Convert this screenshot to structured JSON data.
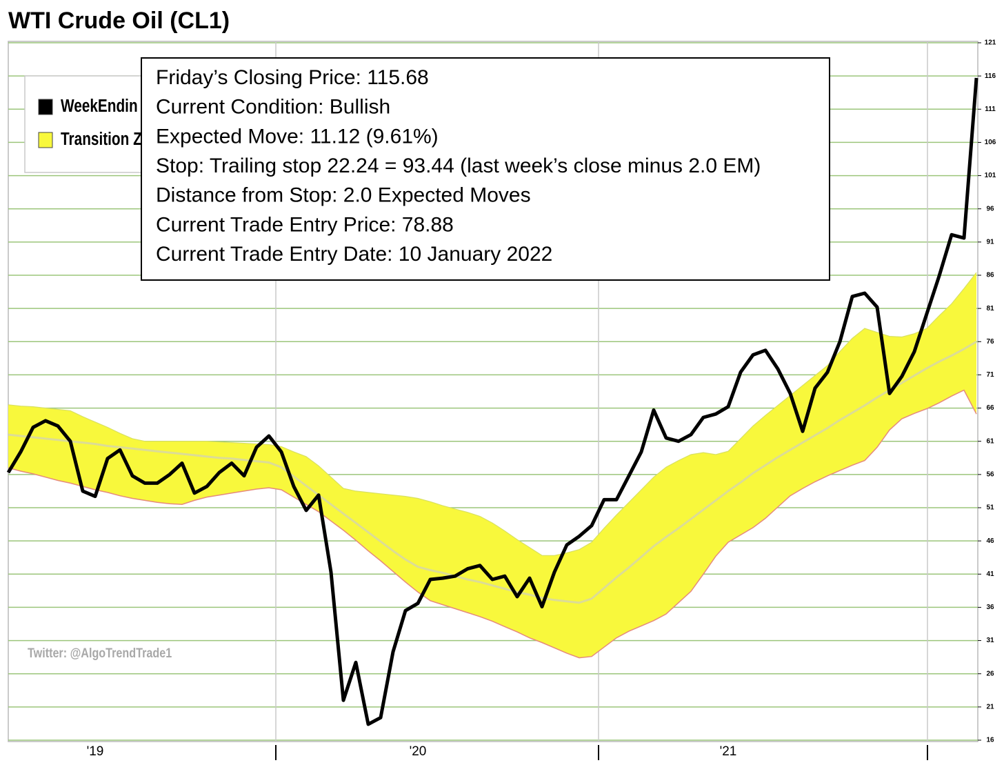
{
  "chart_data": {
    "type": "line",
    "title": "WTI Crude Oil (CL1)",
    "categories": [
      null,
      null,
      null,
      null,
      null,
      null,
      null,
      "'19",
      null,
      null,
      null,
      null,
      null,
      null,
      null,
      null,
      null,
      null,
      null,
      null,
      null,
      null,
      null,
      null,
      null,
      null,
      null,
      null,
      null,
      null,
      null,
      null,
      null,
      "'20",
      null,
      null,
      null,
      null,
      null,
      null,
      null,
      null,
      null,
      null,
      null,
      null,
      null,
      null,
      null,
      null,
      null,
      null,
      null,
      null,
      null,
      null,
      null,
      null,
      "'21",
      null,
      null,
      null,
      null,
      null,
      null,
      null,
      null,
      null,
      null,
      null,
      null,
      null,
      null,
      null,
      null,
      null,
      null,
      null,
      null
    ],
    "series": [
      {
        "name": "WeekEndin",
        "color": "#000000",
        "values": [
          56.3,
          59.4,
          63.1,
          64.1,
          63.3,
          61.0,
          53.5,
          52.7,
          58.4,
          59.7,
          55.8,
          54.7,
          54.7,
          56.0,
          57.7,
          53.2,
          54.2,
          56.3,
          57.7,
          55.8,
          60.1,
          61.8,
          59.4,
          54.2,
          50.6,
          52.9,
          41.3,
          22.0,
          27.7,
          18.4,
          19.4,
          29.3,
          35.5,
          36.6,
          40.2,
          40.4,
          40.7,
          41.8,
          42.3,
          40.2,
          40.7,
          37.6,
          40.4,
          36.1,
          41.3,
          45.4,
          46.7,
          48.3,
          52.2,
          52.2,
          55.8,
          59.4,
          65.7,
          61.5,
          61.0,
          62.0,
          64.6,
          65.1,
          66.2,
          71.4,
          74.0,
          74.7,
          71.9,
          68.2,
          62.5,
          69.0,
          71.4,
          76.0,
          82.8,
          83.3,
          81.2,
          68.2,
          70.8,
          74.5,
          80.2,
          85.9,
          92.1,
          91.6,
          115.7
        ]
      },
      {
        "name": "Transition Z",
        "color": "#f8f83c",
        "edge_color": "#e58a7c",
        "values": [
          66.5,
          66.3,
          66.2,
          66.0,
          65.8,
          65.6,
          64.7,
          63.9,
          63.1,
          62.2,
          61.4,
          61.0,
          61.0,
          61.0,
          61.0,
          61.0,
          61.0,
          60.9,
          60.8,
          60.7,
          60.6,
          60.5,
          60.2,
          59.4,
          58.7,
          57.3,
          55.6,
          53.9,
          53.5,
          53.3,
          53.1,
          52.9,
          52.7,
          52.4,
          51.9,
          51.3,
          50.8,
          50.3,
          49.7,
          48.7,
          47.5,
          46.2,
          45.0,
          43.8,
          43.8,
          44.2,
          44.7,
          45.8,
          47.9,
          49.9,
          51.8,
          53.7,
          55.6,
          57.1,
          58.1,
          59.0,
          59.3,
          59.0,
          59.5,
          61.4,
          63.3,
          64.9,
          66.4,
          67.9,
          69.4,
          70.9,
          72.4,
          74.5,
          76.5,
          78.0,
          77.4,
          76.8,
          76.7,
          77.2,
          78.0,
          79.9,
          81.7,
          84.0,
          86.4
        ],
        "lower": [
          57.0,
          56.5,
          56.1,
          55.6,
          55.1,
          54.7,
          54.2,
          53.7,
          53.3,
          52.8,
          52.4,
          52.1,
          51.8,
          51.6,
          51.5,
          52.1,
          52.6,
          52.9,
          53.2,
          53.5,
          53.8,
          54.0,
          53.7,
          52.6,
          51.5,
          50.4,
          49.0,
          47.6,
          46.1,
          44.5,
          43.0,
          41.4,
          39.8,
          38.3,
          37.0,
          36.4,
          35.8,
          35.2,
          34.6,
          33.9,
          33.1,
          32.3,
          31.4,
          30.7,
          29.9,
          29.1,
          28.4,
          28.6,
          30.0,
          31.4,
          32.4,
          33.2,
          34.0,
          35.0,
          36.7,
          38.4,
          41.0,
          43.7,
          45.8,
          46.9,
          48.0,
          49.4,
          51.1,
          52.8,
          53.9,
          54.9,
          55.8,
          56.6,
          57.4,
          58.1,
          60.1,
          62.7,
          64.4,
          65.2,
          65.9,
          66.8,
          67.8,
          68.7,
          65.1
        ]
      },
      {
        "color": "#dcdc96",
        "values": [
          62.0,
          61.8,
          61.6,
          61.4,
          61.2,
          61.0,
          60.8,
          60.6,
          60.3,
          60.1,
          59.9,
          59.7,
          59.5,
          59.3,
          59.1,
          58.9,
          58.7,
          58.5,
          58.4,
          58.2,
          58.0,
          57.8,
          57.1,
          55.7,
          54.3,
          52.9,
          51.5,
          50.1,
          48.7,
          47.3,
          45.9,
          44.5,
          43.2,
          42.1,
          41.6,
          41.2,
          40.7,
          40.2,
          39.8,
          39.3,
          38.8,
          38.3,
          37.9,
          37.4,
          37.1,
          36.9,
          36.7,
          37.3,
          38.9,
          40.5,
          42.0,
          43.6,
          45.2,
          46.6,
          47.9,
          49.3,
          50.7,
          52.1,
          53.5,
          54.8,
          56.2,
          57.4,
          58.6,
          59.7,
          60.8,
          61.9,
          63.0,
          64.2,
          65.3,
          66.4,
          67.6,
          68.7,
          69.8,
          70.9,
          72.0,
          73.0,
          73.9,
          74.9,
          76.0
        ]
      }
    ],
    "ylim": [
      16,
      121
    ],
    "yticks": [
      16,
      21,
      26,
      31,
      36,
      41,
      46,
      51,
      56,
      61,
      66,
      71,
      76,
      81,
      86,
      91,
      96,
      101,
      106,
      111,
      116,
      121
    ],
    "grid": true,
    "grid_color": "#9bc57a",
    "watermark": "Twitter: @AlgoTrendTrade1",
    "info_box": [
      "Friday’s Closing Price: 115.68",
      "Current Condition: Bullish",
      "Expected Move: 11.12 (9.61%)",
      "Stop: Trailing stop 22.24 = 93.44 (last week’s close minus 2.0 EM)",
      "Distance from Stop: 2.0 Expected Moves",
      "Current Trade Entry Price: 78.88",
      "Current Trade Entry Date: 10 January 2022"
    ]
  }
}
